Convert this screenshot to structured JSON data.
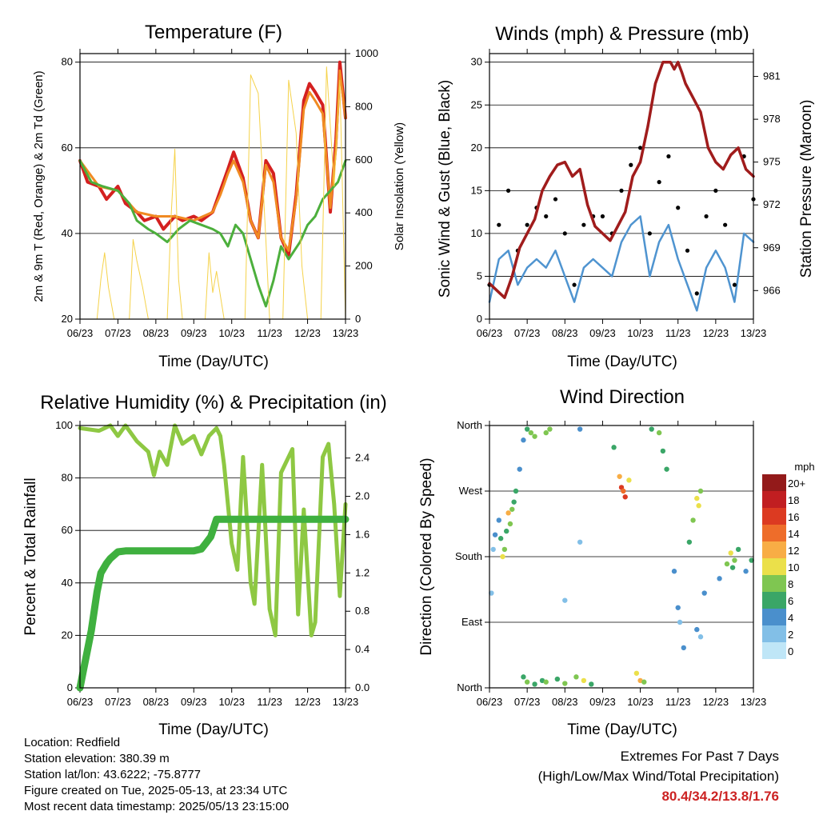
{
  "station": {
    "location_line": "Location: Redfield",
    "elevation_line": "Station elevation: 380.39 m",
    "latlon_line": "Station lat/lon: 43.6222; -75.8777",
    "created_line": "Figure created on Tue, 2025-05-13, at 23:34 UTC",
    "recent_line": "Most recent data timestamp: 2025/05/13 23:15:00"
  },
  "extremes": {
    "title": "Extremes For Past 7 Days",
    "subtitle": "(High/Low/Max Wind/Total Precipitation)",
    "values_text": "80.4/34.2/13.8/1.76"
  },
  "x_ticks": [
    "06/23",
    "07/23",
    "08/23",
    "09/23",
    "10/23",
    "11/23",
    "12/23",
    "13/23"
  ],
  "x_label": "Time (Day/UTC)",
  "chart_data": [
    {
      "type": "line",
      "title": "Temperature (F)",
      "xlabel": "Time (Day/UTC)",
      "ylabel": "2m & 9m T (Red, Orange) & 2m Td (Green)",
      "y2label": "Solar Insolation (Yellow)",
      "x_range": [
        6,
        13
      ],
      "ylim": [
        20,
        82
      ],
      "y_ticks": [
        "20",
        "40",
        "60",
        "80"
      ],
      "y2lim": [
        0,
        1000
      ],
      "y2_ticks": [
        "0",
        "200",
        "400",
        "600",
        "800",
        "1000"
      ],
      "series": [
        {
          "color": "#d42020",
          "x": [
            6.0,
            6.2,
            6.5,
            6.7,
            7.0,
            7.2,
            7.5,
            7.7,
            8.0,
            8.2,
            8.5,
            8.7,
            9.0,
            9.2,
            9.5,
            9.7,
            9.9,
            10.05,
            10.3,
            10.5,
            10.7,
            10.9,
            11.1,
            11.3,
            11.5,
            11.7,
            11.9,
            12.05,
            12.2,
            12.4,
            12.6,
            12.75,
            12.85,
            13.0
          ],
          "y": [
            57,
            52,
            51,
            48,
            51,
            47,
            45,
            43,
            44,
            41,
            44,
            43,
            44,
            43,
            45,
            50,
            55,
            59,
            53,
            43,
            39,
            57,
            54,
            39,
            35,
            49,
            71,
            75,
            73,
            70,
            45,
            62,
            80,
            67
          ]
        },
        {
          "color": "#f08a22",
          "x": [
            6.0,
            6.5,
            7.0,
            7.5,
            8.0,
            8.5,
            9.0,
            9.5,
            9.7,
            9.9,
            10.05,
            10.3,
            10.5,
            10.7,
            10.9,
            11.1,
            11.3,
            11.5,
            11.7,
            11.9,
            12.05,
            12.2,
            12.4,
            12.6,
            12.75,
            12.85,
            13.0
          ],
          "y": [
            57,
            51,
            50,
            45,
            44,
            44,
            43,
            45,
            49,
            54,
            57,
            52,
            43,
            39,
            56,
            52,
            39,
            36,
            48,
            69,
            73,
            71,
            68,
            46,
            60,
            78,
            67
          ]
        },
        {
          "color": "#4caf3c",
          "x": [
            6.0,
            6.3,
            6.6,
            7.0,
            7.3,
            7.5,
            7.8,
            8.0,
            8.3,
            8.6,
            8.9,
            9.2,
            9.5,
            9.7,
            9.9,
            10.1,
            10.3,
            10.5,
            10.7,
            10.9,
            11.1,
            11.3,
            11.5,
            11.8,
            12.0,
            12.2,
            12.4,
            12.6,
            12.8,
            13.0
          ],
          "y": [
            57,
            52,
            51,
            50,
            47,
            43,
            41,
            40,
            38,
            41,
            43,
            42,
            41,
            40,
            37,
            42,
            40,
            34,
            28,
            23,
            29,
            37,
            34,
            38,
            42,
            44,
            48,
            50,
            52,
            57
          ]
        },
        {
          "color": "#f5d24a",
          "axis": "y2",
          "x": [
            6.0,
            6.45,
            6.55,
            6.65,
            6.75,
            6.9,
            7.0,
            7.3,
            7.4,
            7.5,
            7.65,
            7.8,
            8.0,
            8.3,
            8.4,
            8.5,
            8.6,
            8.7,
            9.0,
            9.3,
            9.4,
            9.5,
            9.6,
            9.8,
            10.0,
            10.35,
            10.5,
            10.7,
            10.9,
            11.0,
            11.35,
            11.5,
            11.7,
            11.85,
            12.0,
            12.35,
            12.5,
            12.7,
            12.85,
            13.0
          ],
          "y": [
            0,
            0,
            150,
            250,
            120,
            0,
            0,
            0,
            300,
            220,
            120,
            0,
            0,
            0,
            380,
            640,
            150,
            0,
            0,
            0,
            250,
            100,
            180,
            0,
            0,
            0,
            920,
            850,
            300,
            0,
            0,
            900,
            700,
            200,
            0,
            0,
            950,
            500,
            900,
            0
          ]
        }
      ]
    },
    {
      "type": "line",
      "title": "Winds (mph) & Pressure (mb)",
      "xlabel": "Time (Day/UTC)",
      "ylabel": "Sonic Wind & Gust (Blue, Black)",
      "y2label": "Station Pressure (Maroon)",
      "x_range": [
        6,
        13
      ],
      "ylim": [
        0,
        31
      ],
      "y_ticks": [
        "0",
        "5",
        "10",
        "15",
        "20",
        "25",
        "30"
      ],
      "y2lim": [
        964,
        982.6
      ],
      "y2_ticks": [
        "966",
        "969",
        "972",
        "975",
        "978",
        "981"
      ],
      "series": [
        {
          "color": "#4f94d0",
          "x": [
            6.0,
            6.25,
            6.5,
            6.75,
            7.0,
            7.25,
            7.5,
            7.75,
            8.0,
            8.25,
            8.5,
            8.75,
            9.0,
            9.25,
            9.5,
            9.75,
            10.0,
            10.25,
            10.5,
            10.75,
            11.0,
            11.25,
            11.5,
            11.75,
            12.0,
            12.25,
            12.5,
            12.75,
            13.0
          ],
          "y": [
            2,
            7,
            8,
            4,
            6,
            7,
            6,
            8,
            5,
            2,
            6,
            7,
            6,
            5,
            9,
            11,
            12,
            5,
            9,
            11,
            7,
            4,
            1,
            6,
            8,
            6,
            2,
            10,
            9
          ]
        },
        {
          "color": "#000000",
          "x": [
            6.0,
            6.25,
            6.5,
            6.75,
            7.0,
            7.25,
            7.5,
            7.75,
            8.0,
            8.25,
            8.5,
            8.75,
            9.0,
            9.25,
            9.5,
            9.75,
            10.0,
            10.25,
            10.5,
            10.75,
            11.0,
            11.25,
            11.5,
            11.75,
            12.0,
            12.25,
            12.5,
            12.75,
            13.0
          ],
          "y": [
            4,
            11,
            15,
            8,
            11,
            13,
            12,
            14,
            10,
            4,
            11,
            12,
            12,
            10,
            15,
            18,
            20,
            10,
            16,
            19,
            13,
            8,
            3,
            12,
            15,
            11,
            4,
            19,
            14
          ]
        },
        {
          "color": "#a01c1c",
          "axis": "y2",
          "x": [
            6.0,
            6.2,
            6.4,
            6.6,
            6.8,
            7.0,
            7.2,
            7.4,
            7.6,
            7.8,
            8.0,
            8.2,
            8.4,
            8.6,
            8.8,
            9.0,
            9.2,
            9.4,
            9.6,
            9.8,
            10.0,
            10.2,
            10.4,
            10.6,
            10.8,
            10.9,
            11.0,
            11.1,
            11.2,
            11.4,
            11.6,
            11.8,
            12.0,
            12.2,
            12.4,
            12.6,
            12.8,
            13.0
          ],
          "y": [
            966.5,
            966.0,
            965.5,
            967.0,
            969.0,
            970.0,
            971.0,
            973.0,
            974.0,
            974.8,
            975.0,
            974.0,
            974.5,
            972.0,
            970.5,
            970.0,
            969.5,
            970.5,
            971.5,
            974.0,
            975.0,
            977.5,
            980.5,
            982.0,
            982.0,
            981.5,
            982.0,
            981.3,
            980.5,
            979.5,
            978.5,
            976.0,
            975.0,
            974.5,
            975.5,
            976.0,
            974.5,
            974.0
          ]
        }
      ]
    },
    {
      "type": "line",
      "title": "Relative Humidity (%) & Precipitation (in)",
      "xlabel": "Time (Day/UTC)",
      "ylabel": "Percent & Total Rainfall",
      "x_range": [
        6,
        13
      ],
      "ylim": [
        0,
        100
      ],
      "y_ticks": [
        "0",
        "20",
        "40",
        "60",
        "80",
        "100"
      ],
      "y2lim": [
        0,
        2.74
      ],
      "y2_ticks": [
        "0.0",
        "0.4",
        "0.8",
        "1.2",
        "1.6",
        "2.0",
        "2.4"
      ],
      "series": [
        {
          "color": "#8ec843",
          "x": [
            6.0,
            6.5,
            6.8,
            7.0,
            7.2,
            7.5,
            7.8,
            7.95,
            8.1,
            8.3,
            8.5,
            8.7,
            9.0,
            9.2,
            9.4,
            9.6,
            9.7,
            9.8,
            10.0,
            10.15,
            10.3,
            10.5,
            10.6,
            10.8,
            11.0,
            11.15,
            11.3,
            11.6,
            11.75,
            11.9,
            12.1,
            12.2,
            12.4,
            12.55,
            12.7,
            12.85,
            13.0
          ],
          "y": [
            99,
            98,
            100,
            96,
            100,
            94,
            90,
            81,
            90,
            85,
            100,
            93,
            96,
            89,
            96,
            99,
            96,
            85,
            55,
            45,
            88,
            40,
            32,
            85,
            30,
            20,
            82,
            91,
            28,
            68,
            20,
            25,
            88,
            93,
            70,
            35,
            70
          ]
        },
        {
          "color": "#3fb03f",
          "axis": "y2",
          "x": [
            6.0,
            6.1,
            6.2,
            6.3,
            6.45,
            6.55,
            6.7,
            6.8,
            7.0,
            7.2,
            7.5,
            8.0,
            8.5,
            9.0,
            9.2,
            9.3,
            9.45,
            9.6,
            10.0,
            11.0,
            12.0,
            13.0
          ],
          "y": [
            0.0,
            0.2,
            0.4,
            0.6,
            1.0,
            1.2,
            1.3,
            1.35,
            1.42,
            1.43,
            1.43,
            1.43,
            1.43,
            1.43,
            1.45,
            1.5,
            1.58,
            1.76,
            1.76,
            1.76,
            1.76,
            1.76
          ]
        }
      ]
    },
    {
      "type": "scatter",
      "title": "Wind Direction",
      "xlabel": "Time (Day/UTC)",
      "ylabel": "Direction (Colored By Speed)",
      "x_range": [
        6,
        13
      ],
      "ylim": [
        0,
        360
      ],
      "y_ticks": [
        "North",
        "East",
        "South",
        "West",
        "North"
      ],
      "legend_title": "mph",
      "legend_labels": [
        "0",
        "2",
        "4",
        "6",
        "8",
        "10",
        "12",
        "14",
        "16",
        "18",
        "20+"
      ],
      "legend_colors": [
        "#bfe6f7",
        "#82bfe7",
        "#4a8fcc",
        "#3aa667",
        "#7fc651",
        "#ebe04a",
        "#f8ad45",
        "#ee6d2a",
        "#dc3a21",
        "#c11e21",
        "#931a1a"
      ],
      "legend_placement": "right",
      "points": [
        {
          "x": 6.05,
          "y": 130,
          "s": 1
        },
        {
          "x": 6.1,
          "y": 190,
          "s": 2
        },
        {
          "x": 6.15,
          "y": 210,
          "s": 3
        },
        {
          "x": 6.25,
          "y": 230,
          "s": 4
        },
        {
          "x": 6.3,
          "y": 205,
          "s": 5
        },
        {
          "x": 6.35,
          "y": 180,
          "s": 10
        },
        {
          "x": 6.4,
          "y": 190,
          "s": 8
        },
        {
          "x": 6.45,
          "y": 215,
          "s": 6
        },
        {
          "x": 6.5,
          "y": 240,
          "s": 11
        },
        {
          "x": 6.55,
          "y": 225,
          "s": 7
        },
        {
          "x": 6.6,
          "y": 245,
          "s": 8
        },
        {
          "x": 6.65,
          "y": 255,
          "s": 6
        },
        {
          "x": 6.7,
          "y": 270,
          "s": 5
        },
        {
          "x": 6.8,
          "y": 300,
          "s": 3
        },
        {
          "x": 6.9,
          "y": 340,
          "s": 4
        },
        {
          "x": 7.0,
          "y": 355,
          "s": 6
        },
        {
          "x": 7.1,
          "y": 350,
          "s": 8
        },
        {
          "x": 7.2,
          "y": 345,
          "s": 7
        },
        {
          "x": 6.9,
          "y": 15,
          "s": 6
        },
        {
          "x": 7.0,
          "y": 8,
          "s": 7
        },
        {
          "x": 7.2,
          "y": 5,
          "s": 6
        },
        {
          "x": 7.4,
          "y": 10,
          "s": 5
        },
        {
          "x": 7.5,
          "y": 350,
          "s": 8
        },
        {
          "x": 7.6,
          "y": 355,
          "s": 7
        },
        {
          "x": 7.5,
          "y": 8,
          "s": 7
        },
        {
          "x": 7.8,
          "y": 12,
          "s": 5
        },
        {
          "x": 8.0,
          "y": 6,
          "s": 8
        },
        {
          "x": 8.3,
          "y": 15,
          "s": 7
        },
        {
          "x": 8.5,
          "y": 10,
          "s": 9
        },
        {
          "x": 8.7,
          "y": 5,
          "s": 6
        },
        {
          "x": 8.4,
          "y": 355,
          "s": 4
        },
        {
          "x": 8.0,
          "y": 120,
          "s": 2
        },
        {
          "x": 8.4,
          "y": 200,
          "s": 1
        },
        {
          "x": 9.3,
          "y": 330,
          "s": 6
        },
        {
          "x": 9.45,
          "y": 290,
          "s": 12
        },
        {
          "x": 9.5,
          "y": 275,
          "s": 15
        },
        {
          "x": 9.55,
          "y": 270,
          "s": 14
        },
        {
          "x": 9.6,
          "y": 262,
          "s": 16
        },
        {
          "x": 9.7,
          "y": 285,
          "s": 10
        },
        {
          "x": 9.9,
          "y": 20,
          "s": 9
        },
        {
          "x": 10.0,
          "y": 10,
          "s": 11
        },
        {
          "x": 10.1,
          "y": 8,
          "s": 8
        },
        {
          "x": 10.3,
          "y": 355,
          "s": 6
        },
        {
          "x": 10.5,
          "y": 350,
          "s": 7
        },
        {
          "x": 10.6,
          "y": 325,
          "s": 6
        },
        {
          "x": 10.7,
          "y": 300,
          "s": 5
        },
        {
          "x": 10.9,
          "y": 160,
          "s": 3
        },
        {
          "x": 11.0,
          "y": 110,
          "s": 4
        },
        {
          "x": 11.05,
          "y": 90,
          "s": 2
        },
        {
          "x": 11.15,
          "y": 55,
          "s": 3
        },
        {
          "x": 11.3,
          "y": 200,
          "s": 6
        },
        {
          "x": 11.4,
          "y": 230,
          "s": 7
        },
        {
          "x": 11.5,
          "y": 260,
          "s": 9
        },
        {
          "x": 11.55,
          "y": 250,
          "s": 10
        },
        {
          "x": 11.6,
          "y": 270,
          "s": 8
        },
        {
          "x": 11.5,
          "y": 80,
          "s": 3
        },
        {
          "x": 11.6,
          "y": 70,
          "s": 2
        },
        {
          "x": 11.7,
          "y": 130,
          "s": 3
        },
        {
          "x": 12.1,
          "y": 150,
          "s": 4
        },
        {
          "x": 12.3,
          "y": 170,
          "s": 7
        },
        {
          "x": 12.4,
          "y": 185,
          "s": 9
        },
        {
          "x": 12.45,
          "y": 165,
          "s": 6
        },
        {
          "x": 12.5,
          "y": 175,
          "s": 8
        },
        {
          "x": 12.6,
          "y": 190,
          "s": 5
        },
        {
          "x": 12.8,
          "y": 160,
          "s": 4
        },
        {
          "x": 12.95,
          "y": 175,
          "s": 6
        }
      ]
    }
  ]
}
